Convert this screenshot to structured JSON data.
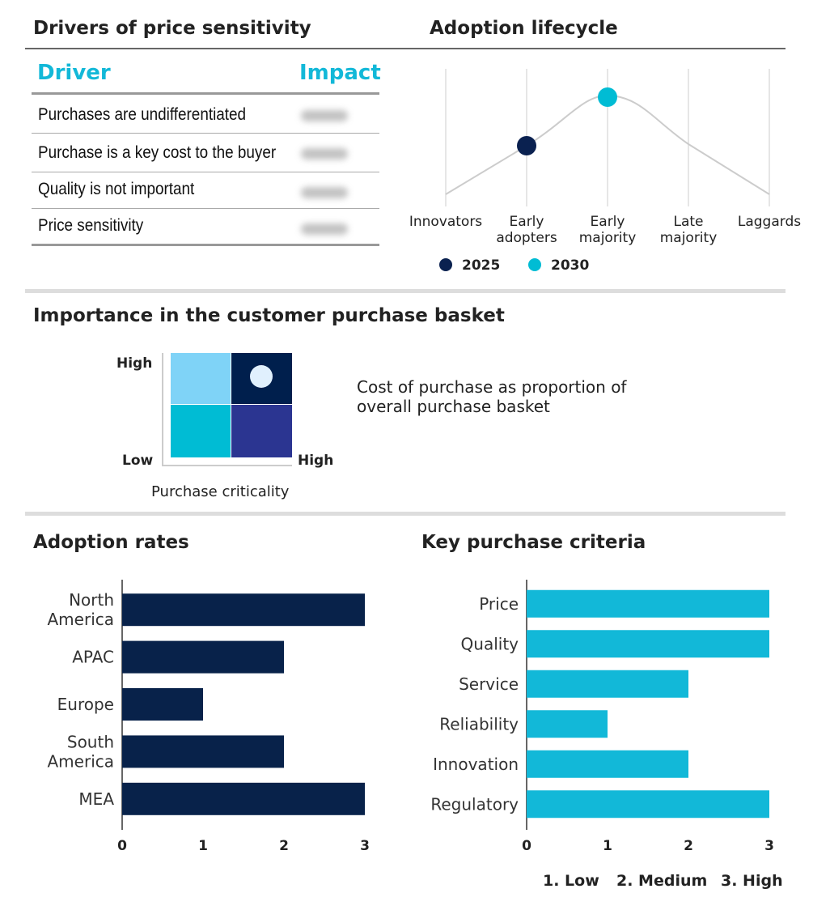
{
  "drivers": {
    "title": "Drivers of price sensitivity",
    "col_driver": "Driver",
    "col_impact": "Impact",
    "rows": [
      {
        "driver": "Purchases are undifferentiated"
      },
      {
        "driver": "Purchase is a key cost to the buyer"
      },
      {
        "driver": "Quality is not important"
      },
      {
        "driver": "Price sensitivity"
      }
    ]
  },
  "importance": {
    "title": "Importance in the customer purchase basket",
    "y_high": "High",
    "low": "Low",
    "x_high": "High",
    "xlabel": "Purchase criticality",
    "description": "Cost of purchase as proportion of overall purchase basket",
    "quadrant_colors": {
      "top_left": "#7fd3f7",
      "top_right": "#001f4d",
      "bottom_left": "#00bcd4",
      "bottom_right": "#2b3591"
    },
    "marker_quadrant": "top-right",
    "marker_color": "#e0f0fd"
  },
  "legend_scale": [
    "1. Low",
    "2. Medium",
    "3. High"
  ],
  "chart_data": [
    {
      "type": "line",
      "title": "Adoption lifecycle",
      "categories": [
        "Innovators",
        "Early adopters",
        "Early majority",
        "Late majority",
        "Laggards"
      ],
      "category_lines": [
        [
          "Innovators"
        ],
        [
          "Early",
          "adopters"
        ],
        [
          "Early",
          "majority"
        ],
        [
          "Late",
          "majority"
        ],
        [
          "Laggards"
        ]
      ],
      "curve_shape": "bell",
      "grid": true,
      "markers": [
        {
          "name": "2025",
          "category": "Early adopters",
          "color": "#0a2150"
        },
        {
          "name": "2030",
          "category": "Early majority",
          "color": "#00bcd4"
        }
      ],
      "legend_placement": "bottom"
    },
    {
      "type": "bar",
      "orientation": "horizontal",
      "title": "Adoption rates",
      "categories": [
        [
          "North",
          "America"
        ],
        [
          "APAC"
        ],
        [
          "Europe"
        ],
        [
          "South",
          "America"
        ],
        [
          "MEA"
        ]
      ],
      "values": [
        3,
        2,
        1,
        2,
        3
      ],
      "xlim": [
        0,
        3
      ],
      "ticks": [
        "0",
        "1",
        "2",
        "3"
      ],
      "color": "#08224a"
    },
    {
      "type": "bar",
      "orientation": "horizontal",
      "title": "Key purchase criteria",
      "categories": [
        [
          "Price"
        ],
        [
          "Quality"
        ],
        [
          "Service"
        ],
        [
          "Reliability"
        ],
        [
          "Innovation"
        ],
        [
          "Regulatory"
        ]
      ],
      "values": [
        3,
        3,
        2,
        1,
        2,
        3
      ],
      "xlim": [
        0,
        3
      ],
      "ticks": [
        "0",
        "1",
        "2",
        "3"
      ],
      "color": "#12b8d8"
    }
  ]
}
